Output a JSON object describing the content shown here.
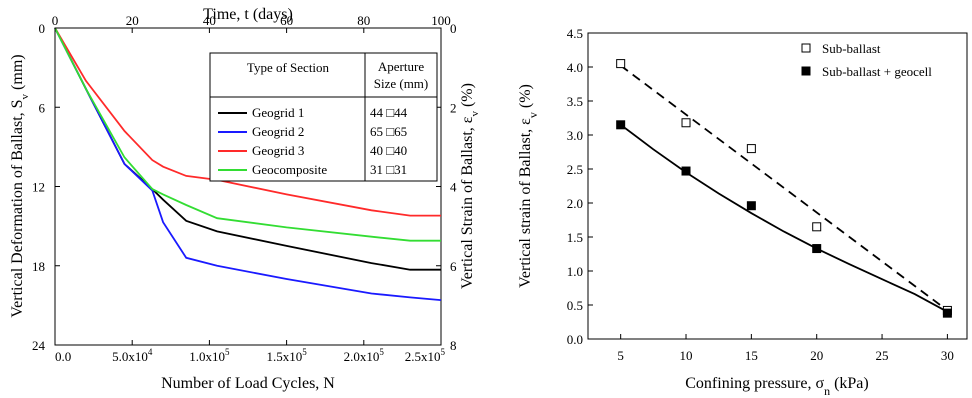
{
  "chart_data": [
    {
      "type": "line",
      "title": "",
      "xlabel_bottom": "Number of Load Cycles, N",
      "xlabel_top": "Time, t (days)",
      "ylabel_left": "Vertical Deformation of Ballast, S",
      "ylabel_left_sub": "v",
      "ylabel_left_unit": " (mm)",
      "ylabel_right": "Vertical Strain of Ballast, ε",
      "ylabel_right_sub": "v",
      "ylabel_right_unit": " (%)",
      "xlim_bottom": [
        0,
        250000
      ],
      "xlim_top": [
        0,
        100
      ],
      "ylim_left": [
        0,
        24
      ],
      "ylim_right": [
        0,
        8
      ],
      "y_inverted": true,
      "x_ticks_bottom": [
        {
          "v": 0,
          "label": "0.0"
        },
        {
          "v": 50000,
          "label": "5.0x10",
          "exp": "4"
        },
        {
          "v": 100000,
          "label": "1.0x10",
          "exp": "5"
        },
        {
          "v": 150000,
          "label": "1.5x10",
          "exp": "5"
        },
        {
          "v": 200000,
          "label": "2.0x10",
          "exp": "5"
        },
        {
          "v": 250000,
          "label": "2.5x10",
          "exp": "5"
        }
      ],
      "x_ticks_top": [
        {
          "v": 0,
          "label": "0"
        },
        {
          "v": 20,
          "label": "20"
        },
        {
          "v": 40,
          "label": "40"
        },
        {
          "v": 60,
          "label": "60"
        },
        {
          "v": 80,
          "label": "80"
        },
        {
          "v": 100,
          "label": "100"
        }
      ],
      "y_ticks_left": [
        {
          "v": 0,
          "label": "0"
        },
        {
          "v": 6,
          "label": "6"
        },
        {
          "v": 12,
          "label": "12"
        },
        {
          "v": 18,
          "label": "18"
        },
        {
          "v": 24,
          "label": "24"
        }
      ],
      "y_ticks_right": [
        {
          "v": 0,
          "label": "0"
        },
        {
          "v": 2,
          "label": "2"
        },
        {
          "v": 4,
          "label": "4"
        },
        {
          "v": 6,
          "label": "6"
        },
        {
          "v": 8,
          "label": "8"
        }
      ],
      "legend": {
        "placement": "top-right",
        "header_type": "Type of Section",
        "header_aperture_1": "Aperture",
        "header_aperture_2": "Size (mm)",
        "rows": [
          {
            "name": "Geogrid 1",
            "aperture": "44 □44",
            "color": "#000000"
          },
          {
            "name": "Geogrid 2",
            "aperture": "65 □65",
            "color": "#1a1aff"
          },
          {
            "name": "Geogrid 3",
            "aperture": "40 □40",
            "color": "#ff2a2a"
          },
          {
            "name": "Geocomposite",
            "aperture": "31 □31",
            "color": "#33dd33"
          }
        ]
      },
      "series": [
        {
          "name": "Geogrid 1",
          "color": "#000000",
          "x": [
            0,
            20000,
            45000,
            63000,
            70000,
            85000,
            105000,
            150000,
            205000,
            230000,
            250000
          ],
          "y": [
            0,
            4.6,
            10.3,
            12.2,
            13.0,
            14.6,
            15.4,
            16.5,
            17.8,
            18.3,
            18.3
          ]
        },
        {
          "name": "Geogrid 2",
          "color": "#1a1aff",
          "x": [
            0,
            20000,
            45000,
            63000,
            70000,
            85000,
            105000,
            150000,
            205000,
            230000,
            250000
          ],
          "y": [
            0,
            4.6,
            10.3,
            12.3,
            14.7,
            17.4,
            18.0,
            19.0,
            20.1,
            20.4,
            20.6
          ]
        },
        {
          "name": "Geogrid 3",
          "color": "#ff2a2a",
          "x": [
            0,
            20000,
            45000,
            63000,
            70000,
            85000,
            105000,
            150000,
            205000,
            230000,
            250000
          ],
          "y": [
            0,
            4.0,
            7.8,
            10.0,
            10.5,
            11.2,
            11.5,
            12.6,
            13.8,
            14.2,
            14.2
          ]
        },
        {
          "name": "Geocomposite",
          "color": "#33dd33",
          "x": [
            0,
            20000,
            45000,
            63000,
            70000,
            85000,
            105000,
            150000,
            205000,
            230000,
            250000
          ],
          "y": [
            0,
            4.6,
            9.8,
            12.2,
            12.6,
            13.4,
            14.4,
            15.1,
            15.8,
            16.1,
            16.1
          ]
        }
      ]
    },
    {
      "type": "scatter",
      "title": "",
      "xlabel": "Confining pressure, σ",
      "xlabel_sub": "n",
      "xlabel_unit": " (kPa)",
      "ylabel": "Vertical strain of Ballast, ε",
      "ylabel_sub": "v",
      "ylabel_unit": " (%)",
      "xlim": [
        2.5,
        31.5
      ],
      "ylim": [
        0,
        4.5
      ],
      "x_ticks": [
        5,
        10,
        15,
        20,
        25,
        30
      ],
      "y_ticks": [
        {
          "v": 0,
          "label": "0.0"
        },
        {
          "v": 0.5,
          "label": "0.5"
        },
        {
          "v": 1.0,
          "label": "1.0"
        },
        {
          "v": 1.5,
          "label": "1.5"
        },
        {
          "v": 2.0,
          "label": "2.0"
        },
        {
          "v": 2.5,
          "label": "2.5"
        },
        {
          "v": 3.0,
          "label": "3.0"
        },
        {
          "v": 3.5,
          "label": "3.5"
        },
        {
          "v": 4.0,
          "label": "4.0"
        },
        {
          "v": 4.5,
          "label": "4.5"
        }
      ],
      "legend_placement": "top-right",
      "series": [
        {
          "name": "Sub-ballast",
          "marker": "open-square",
          "line": "dashed",
          "x": [
            5,
            10,
            15,
            20,
            30
          ],
          "y": [
            4.05,
            3.18,
            2.8,
            1.65,
            0.42
          ],
          "fit_x": [
            5,
            30
          ],
          "fit_y": [
            4.02,
            0.42
          ]
        },
        {
          "name": "Sub-ballast + geocell",
          "marker": "filled-square",
          "line": "solid",
          "x": [
            5,
            10,
            15,
            20,
            30
          ],
          "y": [
            3.15,
            2.47,
            1.96,
            1.33,
            0.38
          ],
          "fit_x": [
            5,
            7.5,
            10,
            12.5,
            15,
            17.5,
            20,
            22.5,
            25,
            27.5,
            30
          ],
          "fit_y": [
            3.15,
            2.79,
            2.45,
            2.14,
            1.85,
            1.58,
            1.33,
            1.1,
            0.88,
            0.66,
            0.4
          ]
        }
      ]
    }
  ]
}
